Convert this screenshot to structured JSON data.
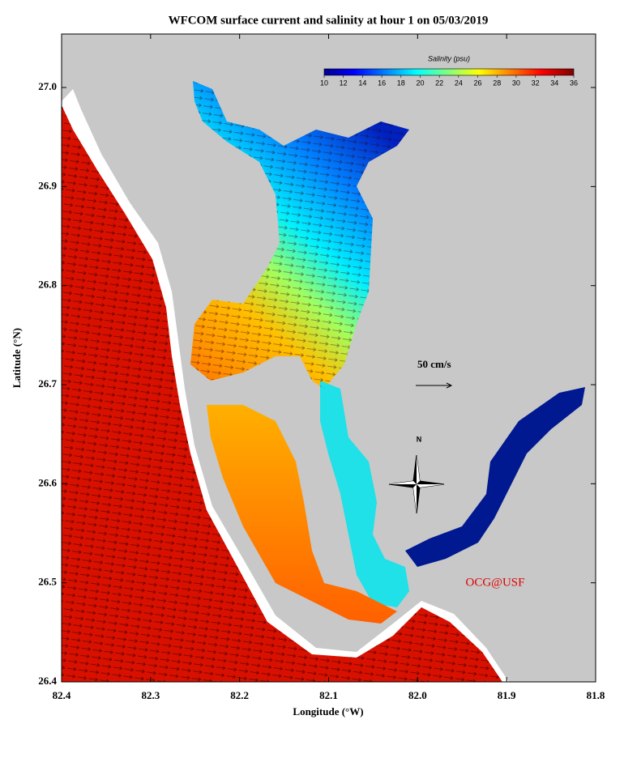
{
  "title": "WFCOM surface current and salinity at hour 1 on 05/03/2019",
  "x_axis": {
    "label": "Longitude (°W)",
    "lim": [
      82.4,
      81.8
    ],
    "ticks": [
      82.4,
      82.3,
      82.2,
      82.1,
      {
        "value": 82.0,
        "label": "82.0"
      },
      81.9,
      81.8
    ]
  },
  "y_axis": {
    "label": "Latitude (°N)",
    "lim": [
      26.4,
      27.054
    ],
    "ticks": [
      26.4,
      26.5,
      26.6,
      26.7,
      26.8,
      26.9,
      {
        "value": 27.0,
        "label": "27.0"
      }
    ]
  },
  "colorbar": {
    "title": "Salinity (psu)",
    "lim": [
      10,
      36
    ],
    "ticks": [
      10,
      12,
      14,
      16,
      18,
      20,
      22,
      24,
      26,
      28,
      30,
      32,
      34,
      36
    ]
  },
  "scale_label": "50 cm/s",
  "north_label": "N",
  "credit": "OCG@USF"
}
